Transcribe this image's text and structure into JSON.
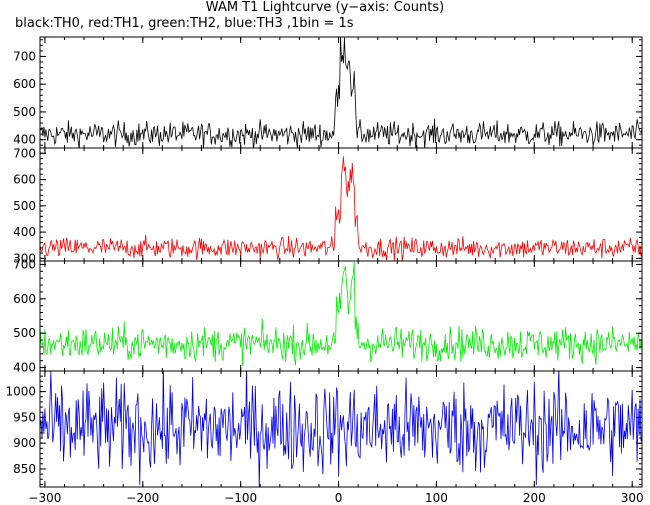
{
  "title": "WAM T1 Lightcurve (y−axis: Counts)",
  "subtitle": "black:TH0, red:TH1, green:TH2, blue:TH3 ,1bin = 1s",
  "chart_data": {
    "type": "line",
    "x_range": [
      -305,
      310
    ],
    "x_ticks": [
      -300,
      -200,
      -100,
      0,
      100,
      200,
      300
    ],
    "bin_seconds": 1,
    "panels": [
      {
        "name": "TH0",
        "color": "#000000",
        "ylim": [
          370,
          770
        ],
        "y_ticks": [
          400,
          500,
          600,
          700
        ],
        "baseline": 420,
        "noise": 22,
        "burst": [
          {
            "start": -3,
            "end": 2,
            "level": 560
          },
          {
            "start": 2,
            "end": 8,
            "level": 730
          },
          {
            "start": 8,
            "end": 13,
            "level": 680
          },
          {
            "start": 13,
            "end": 18,
            "level": 600
          }
        ]
      },
      {
        "name": "TH1",
        "color": "#ff0000",
        "ylim": [
          290,
          720
        ],
        "y_ticks": [
          300,
          400,
          500,
          600,
          700
        ],
        "baseline": 340,
        "noise": 20,
        "burst": [
          {
            "start": -3,
            "end": 3,
            "level": 470
          },
          {
            "start": 3,
            "end": 8,
            "level": 660
          },
          {
            "start": 8,
            "end": 12,
            "level": 560
          },
          {
            "start": 12,
            "end": 17,
            "level": 620
          },
          {
            "start": 17,
            "end": 21,
            "level": 430
          }
        ]
      },
      {
        "name": "TH2",
        "color": "#00ee00",
        "ylim": [
          390,
          710
        ],
        "y_ticks": [
          400,
          500,
          600,
          700
        ],
        "baseline": 470,
        "noise": 25,
        "burst": [
          {
            "start": -2,
            "end": 4,
            "level": 560
          },
          {
            "start": 4,
            "end": 9,
            "level": 670
          },
          {
            "start": 9,
            "end": 13,
            "level": 590
          },
          {
            "start": 13,
            "end": 17,
            "level": 650
          },
          {
            "start": 17,
            "end": 21,
            "level": 520
          }
        ]
      },
      {
        "name": "TH3",
        "color": "#0000ee",
        "ylim": [
          815,
          1040
        ],
        "y_ticks": [
          850,
          900,
          950,
          1000
        ],
        "baseline": 930,
        "noise": 45,
        "burst": []
      }
    ]
  }
}
